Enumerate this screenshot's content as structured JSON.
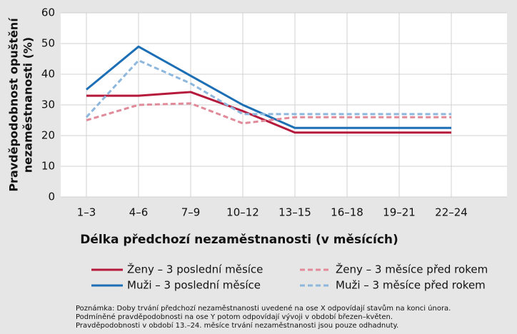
{
  "chart_data": {
    "type": "line",
    "ylabel": [
      "Pravděpodobnost opuštění",
      "nezaměstnanosti (%)"
    ],
    "xlabel": "Délka předchozí nezaměstnanosti (v měsících)",
    "categories": [
      "1–3",
      "4–6",
      "7–9",
      "10–12",
      "13–15",
      "16–18",
      "19–21",
      "22–24"
    ],
    "series": [
      {
        "name": "Ženy – 3 poslední měsíce",
        "color": "#b5193b",
        "dash": false,
        "values": [
          33,
          33,
          34.2,
          28,
          21,
          21,
          21,
          21
        ]
      },
      {
        "name": "Muži – 3 poslední měsíce",
        "color": "#1d6fb5",
        "dash": false,
        "values": [
          35,
          49,
          39.5,
          30,
          22.5,
          22.5,
          22.5,
          22.5
        ]
      },
      {
        "name": "Ženy – 3 měsíce před rokem",
        "color": "#e08a9a",
        "dash": true,
        "values": [
          25,
          30,
          30.5,
          24,
          26,
          26,
          26,
          26
        ]
      },
      {
        "name": "Muži – 3 měsíce před rokem",
        "color": "#8db7dd",
        "dash": true,
        "values": [
          26,
          44.5,
          37,
          27,
          27,
          27,
          27,
          27
        ]
      }
    ],
    "ylim": [
      0,
      60
    ],
    "yticks": [
      0,
      10,
      20,
      30,
      40,
      50,
      60
    ],
    "grid": true,
    "note": [
      "Poznámka: Doby trvání předchozí nezaměstnanosti uvedené na ose X odpovídají stavům na konci února.",
      "Podmíněné pravděpodobnosti na ose Y potom odpovídají vývoji v období březen–květen.",
      "Pravděpodobnosti v období 13.–24. měsíce trvání nezaměstnanosti jsou pouze odhadnuty."
    ]
  }
}
